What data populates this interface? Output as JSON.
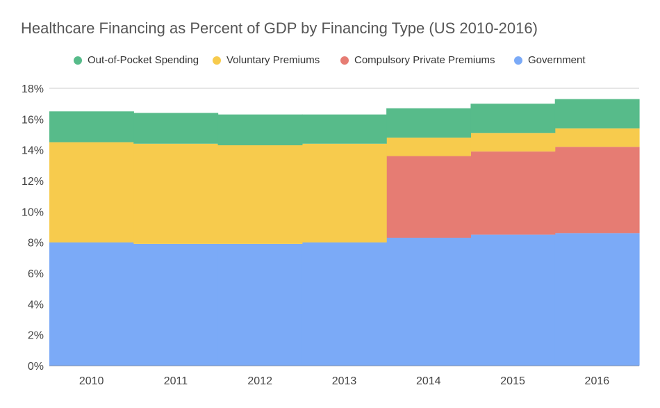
{
  "chart_data": {
    "type": "area",
    "style": "stacked-step",
    "title": "Healthcare Financing as Percent of GDP by Financing Type (US 2010-2016)",
    "xlabel": "",
    "ylabel": "",
    "categories": [
      "2010",
      "2011",
      "2012",
      "2013",
      "2014",
      "2015",
      "2016"
    ],
    "y_ticks": [
      "0%",
      "2%",
      "4%",
      "6%",
      "8%",
      "10%",
      "12%",
      "14%",
      "16%",
      "18%"
    ],
    "ylim": [
      0,
      18
    ],
    "grid": true,
    "legend_position": "top",
    "series": [
      {
        "name": "Out-of-Pocket Spending",
        "color": "#57bb8a",
        "values": [
          2.0,
          2.0,
          2.0,
          1.9,
          1.9,
          1.9,
          1.9
        ]
      },
      {
        "name": "Voluntary Premiums",
        "color": "#f7cb4d",
        "values": [
          6.5,
          6.5,
          6.4,
          6.4,
          1.2,
          1.2,
          1.2
        ]
      },
      {
        "name": "Compulsory Private Premiums",
        "color": "#e67c73",
        "values": [
          0.0,
          0.0,
          0.0,
          0.0,
          5.3,
          5.4,
          5.6
        ]
      },
      {
        "name": "Government",
        "color": "#7baaf7",
        "values": [
          8.0,
          7.9,
          7.9,
          8.0,
          8.3,
          8.5,
          8.6
        ]
      }
    ]
  }
}
